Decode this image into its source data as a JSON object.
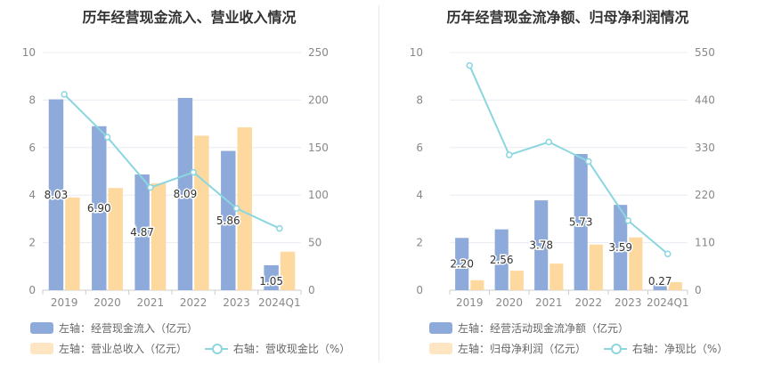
{
  "chart_data": [
    {
      "type": "bar",
      "title": "历年经营现金流入、营业收入情况",
      "categories": [
        "2019",
        "2020",
        "2021",
        "2022",
        "2023",
        "2024Q1"
      ],
      "y_left": {
        "min": 0,
        "max": 10,
        "ticks": [
          "0",
          "2",
          "4",
          "6",
          "8",
          "10"
        ]
      },
      "y_right": {
        "min": 0,
        "max": 250,
        "ticks": [
          "0",
          "50",
          "100",
          "150",
          "200",
          "250"
        ]
      },
      "grid": true,
      "legend_placement": "bottom",
      "series": [
        {
          "name": "左轴：经营现金流入（亿元）",
          "axis": "left",
          "kind": "bar",
          "color": "#8eaadb",
          "values": [
            8.03,
            6.9,
            4.87,
            8.09,
            5.86,
            1.05
          ],
          "labels": [
            "8.03",
            "6.90",
            "4.87",
            "8.09",
            "5.86",
            "1.05"
          ]
        },
        {
          "name": "左轴：营业总收入（亿元）",
          "axis": "left",
          "kind": "bar",
          "color": "#fdd9a0",
          "values": [
            3.9,
            4.3,
            4.5,
            6.5,
            6.85,
            1.62
          ]
        },
        {
          "name": "右轴：营收现金比（%）",
          "axis": "right",
          "kind": "line",
          "color": "#8bd6df",
          "values": [
            206,
            161,
            108,
            124,
            86,
            65
          ]
        }
      ]
    },
    {
      "type": "bar",
      "title": "历年经营现金流净额、归母净利润情况",
      "categories": [
        "2019",
        "2020",
        "2021",
        "2022",
        "2023",
        "2024Q1"
      ],
      "y_left": {
        "min": 0,
        "max": 10,
        "ticks": [
          "0",
          "2",
          "4",
          "6",
          "8",
          "10"
        ]
      },
      "y_right": {
        "min": 0,
        "max": 550,
        "ticks": [
          "0",
          "110",
          "220",
          "330",
          "440",
          "550"
        ]
      },
      "grid": true,
      "legend_placement": "bottom",
      "series": [
        {
          "name": "左轴：经营活动现金流净额（亿元）",
          "axis": "left",
          "kind": "bar",
          "color": "#8eaadb",
          "values": [
            2.2,
            2.56,
            3.78,
            5.73,
            3.59,
            0.27
          ],
          "labels": [
            "2.20",
            "2.56",
            "3.78",
            "5.73",
            "3.59",
            "0.27"
          ]
        },
        {
          "name": "左轴：归母净利润（亿元）",
          "axis": "left",
          "kind": "bar",
          "color": "#fdd9a0",
          "values": [
            0.42,
            0.82,
            1.12,
            1.92,
            2.22,
            0.34
          ]
        },
        {
          "name": "右轴：净现比（%）",
          "axis": "right",
          "kind": "line",
          "color": "#8bd6df",
          "values": [
            520,
            313,
            343,
            298,
            161,
            84
          ]
        }
      ]
    }
  ]
}
